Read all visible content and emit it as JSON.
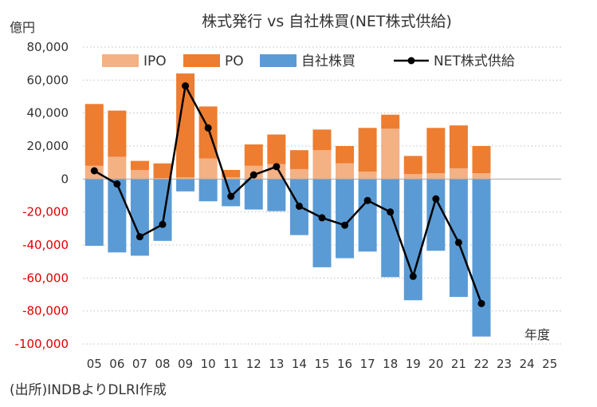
{
  "chart_data": {
    "type": "bar",
    "title": "株式発行 vs 自社株買(NET株式供給)",
    "ylabel": "億円",
    "xlabel": "年度",
    "ylim": [
      -100000,
      80000
    ],
    "yticks": [
      80000,
      60000,
      40000,
      20000,
      0,
      -20000,
      -40000,
      -60000,
      -80000,
      -100000
    ],
    "ytick_labels": [
      "80,000",
      "60,000",
      "40,000",
      "20,000",
      "0",
      "-20,000",
      "-40,000",
      "-60,000",
      "-80,000",
      "-100,000"
    ],
    "categories": [
      "05",
      "06",
      "07",
      "08",
      "09",
      "10",
      "11",
      "12",
      "13",
      "14",
      "15",
      "16",
      "17",
      "18",
      "19",
      "20",
      "21",
      "22",
      "23",
      "24",
      "25"
    ],
    "series": [
      {
        "name": "IPO",
        "kind": "stacked-bar",
        "color": "#F4B183",
        "values": [
          8000,
          13500,
          5500,
          500,
          1000,
          12500,
          1000,
          8000,
          9000,
          6000,
          17500,
          9500,
          4500,
          30500,
          3000,
          3500,
          6500,
          3500,
          null,
          null,
          null
        ]
      },
      {
        "name": "PO",
        "kind": "stacked-bar",
        "color": "#ED7D31",
        "values": [
          37500,
          28000,
          5500,
          9000,
          63000,
          31500,
          4500,
          13000,
          18000,
          11500,
          12500,
          10500,
          26500,
          8500,
          11000,
          27500,
          26000,
          16500,
          null,
          null,
          null
        ]
      },
      {
        "name": "自社株買",
        "kind": "bar",
        "color": "#5B9BD5",
        "values": [
          -40500,
          -44500,
          -46500,
          -37500,
          -7500,
          -13500,
          -16500,
          -18500,
          -19500,
          -34000,
          -53500,
          -48000,
          -44000,
          -59500,
          -73500,
          -43500,
          -71500,
          -95500,
          null,
          null,
          null
        ]
      },
      {
        "name": "NET株式供給",
        "kind": "line",
        "color": "#000000",
        "values": [
          5000,
          -3000,
          -35000,
          -27500,
          56500,
          31000,
          -10500,
          2500,
          7500,
          -16500,
          -23500,
          -28000,
          -13000,
          -20000,
          -59000,
          -12000,
          -38500,
          -75500,
          null,
          null,
          null
        ]
      }
    ],
    "source_note": "(出所)INDBよりDLRI作成"
  }
}
